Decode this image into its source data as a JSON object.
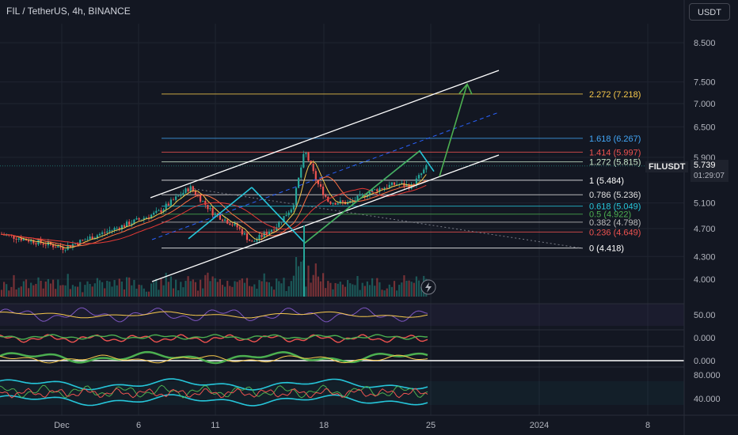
{
  "header": {
    "title": "FIL / TetherUS, 4h, BINANCE",
    "currency": "USDT"
  },
  "price_badge": {
    "ticker": "FILUSDT",
    "last_price": "5.739",
    "countdown": "01:29:07"
  },
  "colors": {
    "background": "#131722",
    "up_candle": "#26a69a",
    "down_candle": "#ef5350",
    "channel": "#ffffff",
    "projection": "#4caf50",
    "pattern": "#26c6da",
    "dashed_trend": "#2962ff"
  },
  "chart_data": [
    {
      "type": "candlestick",
      "title": "",
      "y_scale": "log",
      "y_ticks": [
        "8.500",
        "7.500",
        "7.000",
        "6.500",
        "5.900",
        "5.100",
        "4.700",
        "4.300",
        "4.000"
      ],
      "x_ticks": [
        "Dec",
        "6",
        "11",
        "18",
        "25",
        "2024",
        "8"
      ],
      "last_price": 5.739,
      "fib_levels": [
        {
          "label": "2.272 (7.218)",
          "value": 7.218,
          "color": "#f7c94c"
        },
        {
          "label": "1.618 (6.267)",
          "value": 6.267,
          "color": "#42a5f5"
        },
        {
          "label": "1.414 (5.997)",
          "value": 5.997,
          "color": "#ef5350"
        },
        {
          "label": "1.272 (5.815)",
          "value": 5.815,
          "color": "#c8e6c9"
        },
        {
          "label": "1 (5.484)",
          "value": 5.484,
          "color": "#ffffff"
        },
        {
          "label": "0.786 (5.236)",
          "value": 5.236,
          "color": "#e0e0e0"
        },
        {
          "label": "0.618 (5.049)",
          "value": 5.049,
          "color": "#26c6da"
        },
        {
          "label": "0.5 (4.922)",
          "value": 4.922,
          "color": "#4caf50"
        },
        {
          "label": "0.382 (4.798)",
          "value": 4.798,
          "color": "#bdbdbd"
        },
        {
          "label": "0.236 (4.649)",
          "value": 4.649,
          "color": "#ef5350"
        },
        {
          "label": "0 (4.418)",
          "value": 4.418,
          "color": "#ffffff"
        }
      ],
      "swing_points": [
        4.55,
        5.36,
        4.49,
        6.02,
        5.64,
        5.55,
        7.45
      ],
      "projection_target": 7.45
    },
    {
      "type": "line",
      "title": "",
      "y_ticks": [
        "50.00"
      ]
    },
    {
      "type": "line",
      "title": "",
      "y_ticks": [
        "0.000"
      ]
    },
    {
      "type": "line",
      "title": "",
      "y_ticks": [
        "0.000"
      ]
    },
    {
      "type": "line",
      "title": "",
      "y_ticks": [
        "80.000",
        "40.000"
      ]
    }
  ]
}
